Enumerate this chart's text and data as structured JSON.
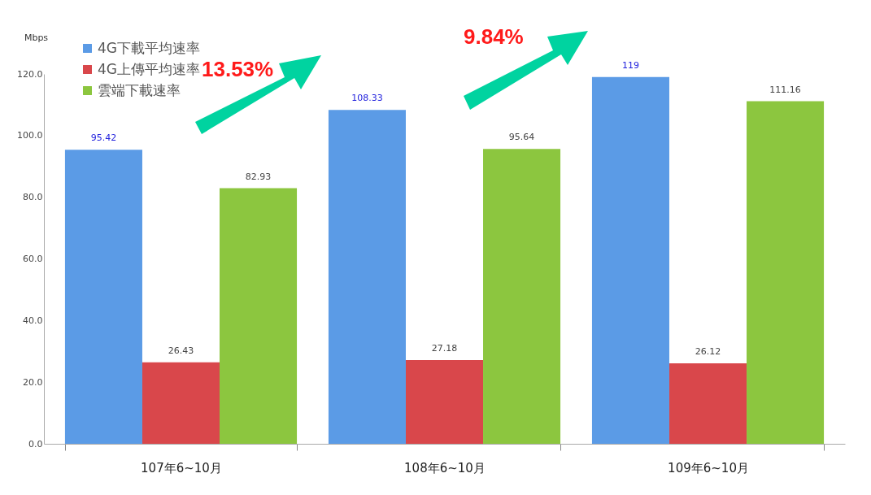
{
  "chart_data": {
    "type": "bar",
    "ylabel": "Mbps",
    "categories": [
      "107年6~10月",
      "108年6~10月",
      "109年6~10月"
    ],
    "series": [
      {
        "name": "4G下載平均速率",
        "color": "#5b9be6",
        "values": [
          95.42,
          108.33,
          119
        ]
      },
      {
        "name": "4G上傳平均速率",
        "color": "#d9474b",
        "values": [
          26.43,
          27.18,
          26.12
        ]
      },
      {
        "name": "雲端下載速率",
        "color": "#8cc63f",
        "values": [
          82.93,
          95.64,
          111.16
        ]
      }
    ],
    "ylim": [
      0,
      120
    ],
    "yticks": [
      {
        "value": 0,
        "label": "0.0"
      },
      {
        "value": 20,
        "label": "20.0"
      },
      {
        "value": 40,
        "label": "40.0"
      },
      {
        "value": 60,
        "label": "60.0"
      },
      {
        "value": 80,
        "label": "80.0"
      },
      {
        "value": 100,
        "label": "100.0"
      },
      {
        "value": 120,
        "label": "120.0"
      }
    ],
    "data_labels": true,
    "grid": false,
    "legend": "top left",
    "annotations": [
      "13.53%",
      "9.84%"
    ]
  }
}
